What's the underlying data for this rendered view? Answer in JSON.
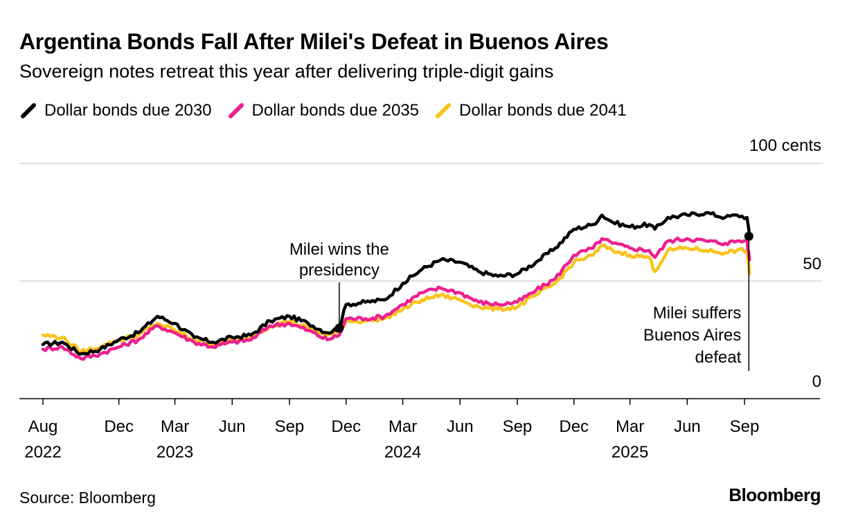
{
  "title": "Argentina Bonds Fall After Milei's Defeat in Buenos Aires",
  "subtitle": "Sovereign notes retreat this year after delivering triple-digit gains",
  "source": "Source: Bloomberg",
  "logo": "Bloomberg",
  "colors": {
    "s2030": "#000000",
    "s2035": "#ee1f8f",
    "s2041": "#fbc31b",
    "grid": "#d6d6d6"
  },
  "chart_data": {
    "type": "line",
    "title": "Argentina Bonds Fall After Milei's Defeat in Buenos Aires",
    "ylabel": "100 cents",
    "ylim": [
      0,
      100
    ],
    "y_ticks": [
      {
        "value": 100,
        "label": "100 cents"
      },
      {
        "value": 50,
        "label": "50"
      },
      {
        "value": 0,
        "label": "0"
      }
    ],
    "x_ticks": [
      {
        "date": "2022-08-01",
        "month": "Aug",
        "year": "2022"
      },
      {
        "date": "2022-12-01",
        "month": "Dec",
        "year": ""
      },
      {
        "date": "2023-03-01",
        "month": "Mar",
        "year": "2023"
      },
      {
        "date": "2023-06-01",
        "month": "Jun",
        "year": ""
      },
      {
        "date": "2023-09-01",
        "month": "Sep",
        "year": ""
      },
      {
        "date": "2023-12-01",
        "month": "Dec",
        "year": ""
      },
      {
        "date": "2024-03-01",
        "month": "Mar",
        "year": "2024"
      },
      {
        "date": "2024-06-01",
        "month": "Jun",
        "year": ""
      },
      {
        "date": "2024-09-01",
        "month": "Sep",
        "year": ""
      },
      {
        "date": "2024-12-01",
        "month": "Dec",
        "year": ""
      },
      {
        "date": "2025-03-01",
        "month": "Mar",
        "year": "2025"
      },
      {
        "date": "2025-06-01",
        "month": "Jun",
        "year": ""
      },
      {
        "date": "2025-09-01",
        "month": "Sep",
        "year": ""
      }
    ],
    "x_range": [
      "2022-07-01",
      "2025-12-31"
    ],
    "series": [
      {
        "name": "Dollar bonds due 2030",
        "color": "#000000",
        "x": [
          "2022-08-01",
          "2022-09-01",
          "2022-10-01",
          "2022-11-01",
          "2022-12-01",
          "2023-01-01",
          "2023-02-01",
          "2023-03-01",
          "2023-04-01",
          "2023-05-01",
          "2023-06-01",
          "2023-07-01",
          "2023-08-01",
          "2023-09-01",
          "2023-10-01",
          "2023-11-01",
          "2023-11-20",
          "2023-12-01",
          "2024-01-01",
          "2024-02-01",
          "2024-03-01",
          "2024-04-01",
          "2024-05-01",
          "2024-06-01",
          "2024-07-01",
          "2024-08-01",
          "2024-09-01",
          "2024-10-01",
          "2024-11-01",
          "2024-12-01",
          "2025-01-01",
          "2025-01-15",
          "2025-02-01",
          "2025-03-01",
          "2025-04-01",
          "2025-04-10",
          "2025-05-01",
          "2025-06-01",
          "2025-07-01",
          "2025-08-01",
          "2025-08-20",
          "2025-09-05",
          "2025-09-09"
        ],
        "values": [
          23,
          24,
          19,
          21,
          25,
          28,
          35,
          32,
          26,
          24,
          26,
          27,
          33,
          35,
          32,
          28,
          30,
          40,
          41,
          42,
          49,
          55,
          59,
          58,
          54,
          52,
          53,
          58,
          64,
          72,
          74,
          78,
          75,
          73,
          74,
          72,
          77,
          78,
          79,
          77,
          78,
          77,
          69
        ]
      },
      {
        "name": "Dollar bonds due 2035",
        "color": "#ee1f8f",
        "x": [
          "2022-08-01",
          "2022-09-01",
          "2022-10-01",
          "2022-11-01",
          "2022-12-01",
          "2023-01-01",
          "2023-02-01",
          "2023-03-01",
          "2023-04-01",
          "2023-05-01",
          "2023-06-01",
          "2023-07-01",
          "2023-08-01",
          "2023-09-01",
          "2023-10-01",
          "2023-11-01",
          "2023-11-20",
          "2023-12-01",
          "2024-01-01",
          "2024-02-01",
          "2024-03-01",
          "2024-04-01",
          "2024-05-01",
          "2024-06-01",
          "2024-07-01",
          "2024-08-01",
          "2024-09-01",
          "2024-10-01",
          "2024-11-01",
          "2024-12-01",
          "2025-01-01",
          "2025-01-15",
          "2025-02-01",
          "2025-03-01",
          "2025-04-01",
          "2025-04-10",
          "2025-05-01",
          "2025-06-01",
          "2025-07-01",
          "2025-08-01",
          "2025-08-20",
          "2025-09-05",
          "2025-09-09"
        ],
        "values": [
          21,
          22,
          17,
          19,
          22,
          25,
          31,
          28,
          24,
          22,
          24,
          25,
          31,
          32,
          29,
          25,
          27,
          34,
          34,
          35,
          40,
          45,
          47,
          45,
          41,
          40,
          41,
          46,
          51,
          61,
          64,
          68,
          66,
          64,
          63,
          60,
          67,
          68,
          67,
          66,
          67,
          67,
          59
        ]
      },
      {
        "name": "Dollar bonds due 2041",
        "color": "#fbc31b",
        "x": [
          "2022-08-01",
          "2022-09-01",
          "2022-10-01",
          "2022-11-01",
          "2022-12-01",
          "2023-01-01",
          "2023-02-01",
          "2023-03-01",
          "2023-04-01",
          "2023-05-01",
          "2023-06-01",
          "2023-07-01",
          "2023-08-01",
          "2023-09-01",
          "2023-10-01",
          "2023-11-01",
          "2023-11-20",
          "2023-12-01",
          "2024-01-01",
          "2024-02-01",
          "2024-03-01",
          "2024-04-01",
          "2024-05-01",
          "2024-06-01",
          "2024-07-01",
          "2024-08-01",
          "2024-09-01",
          "2024-10-01",
          "2024-11-01",
          "2024-12-01",
          "2025-01-01",
          "2025-01-15",
          "2025-02-01",
          "2025-03-01",
          "2025-04-01",
          "2025-04-10",
          "2025-05-01",
          "2025-06-01",
          "2025-07-01",
          "2025-08-01",
          "2025-08-20",
          "2025-09-05",
          "2025-09-09"
        ],
        "values": [
          27,
          26,
          20,
          22,
          25,
          27,
          32,
          29,
          25,
          23,
          25,
          26,
          31,
          33,
          30,
          27,
          28,
          33,
          33,
          34,
          38,
          42,
          44,
          42,
          39,
          38,
          39,
          44,
          49,
          58,
          61,
          65,
          63,
          61,
          60,
          54,
          63,
          64,
          63,
          62,
          63,
          63,
          53
        ]
      }
    ],
    "annotations": [
      {
        "text": [
          "Milei wins the",
          "presidency"
        ],
        "date": "2023-11-20",
        "value": 30
      },
      {
        "text": [
          "Milei suffers",
          "Buenos Aires",
          "defeat"
        ],
        "date": "2025-09-08",
        "value": 69
      }
    ]
  }
}
